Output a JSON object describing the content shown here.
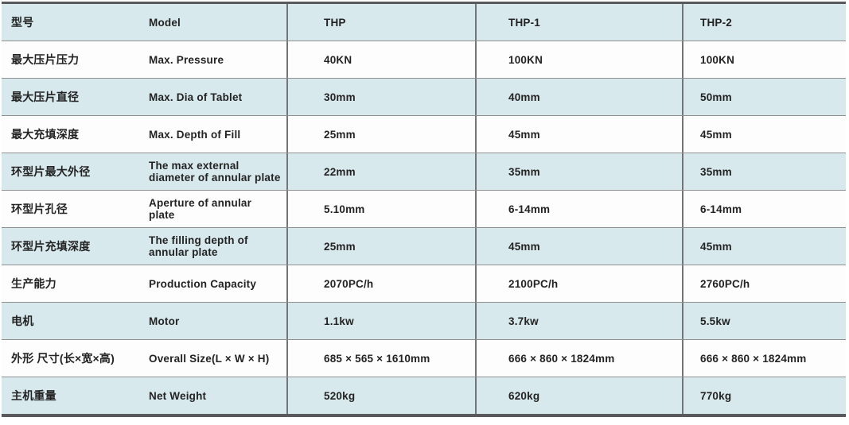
{
  "table": {
    "header": {
      "cn": "型号",
      "en": "Model",
      "thp": "THP",
      "thp1": "THP-1",
      "thp2": "THP-2"
    },
    "rows": [
      {
        "cn": "最大压片压力",
        "en": "Max. Pressure",
        "thp": "40KN",
        "thp1": "100KN",
        "thp2": "100KN"
      },
      {
        "cn": "最大压片直径",
        "en": "Max. Dia of Tablet",
        "thp": "30mm",
        "thp1": "40mm",
        "thp2": "50mm"
      },
      {
        "cn": "最大充填深度",
        "en": "Max. Depth of Fill",
        "thp": "25mm",
        "thp1": "45mm",
        "thp2": "45mm"
      },
      {
        "cn": "环型片最大外径",
        "en": "The max external\ndiameter of annular plate",
        "thp": "22mm",
        "thp1": "35mm",
        "thp2": "35mm"
      },
      {
        "cn": "环型片孔径",
        "en": "Aperture of annular\nplate",
        "thp": "5.10mm",
        "thp1": "6-14mm",
        "thp2": "6-14mm"
      },
      {
        "cn": "环型片充填深度",
        "en": "The filling depth of\nannular plate",
        "thp": "25mm",
        "thp1": "45mm",
        "thp2": "45mm"
      },
      {
        "cn": "生产能力",
        "en": "Production Capacity",
        "thp": "2070PC/h",
        "thp1": "2100PC/h",
        "thp2": "2760PC/h"
      },
      {
        "cn": "电机",
        "en": "Motor",
        "thp": "1.1kw",
        "thp1": "3.7kw",
        "thp2": "5.5kw"
      },
      {
        "cn": "外形 尺寸(长×宽×高)",
        "en": "Overall Size(L × W × H)",
        "thp": "685 × 565 × 1610mm",
        "thp1": "666 × 860 × 1824mm",
        "thp2": "666 × 860 × 1824mm"
      },
      {
        "cn": "主机重量",
        "en": "Net Weight",
        "thp": "520kg",
        "thp1": "620kg",
        "thp2": "770kg"
      }
    ]
  },
  "colors": {
    "row_blue": "#d8e9ee",
    "row_white": "#fdfdfd",
    "grid_line": "#8f8f8f",
    "frame_border": "#59595b",
    "column_line": "#737579",
    "text": "#232323"
  }
}
